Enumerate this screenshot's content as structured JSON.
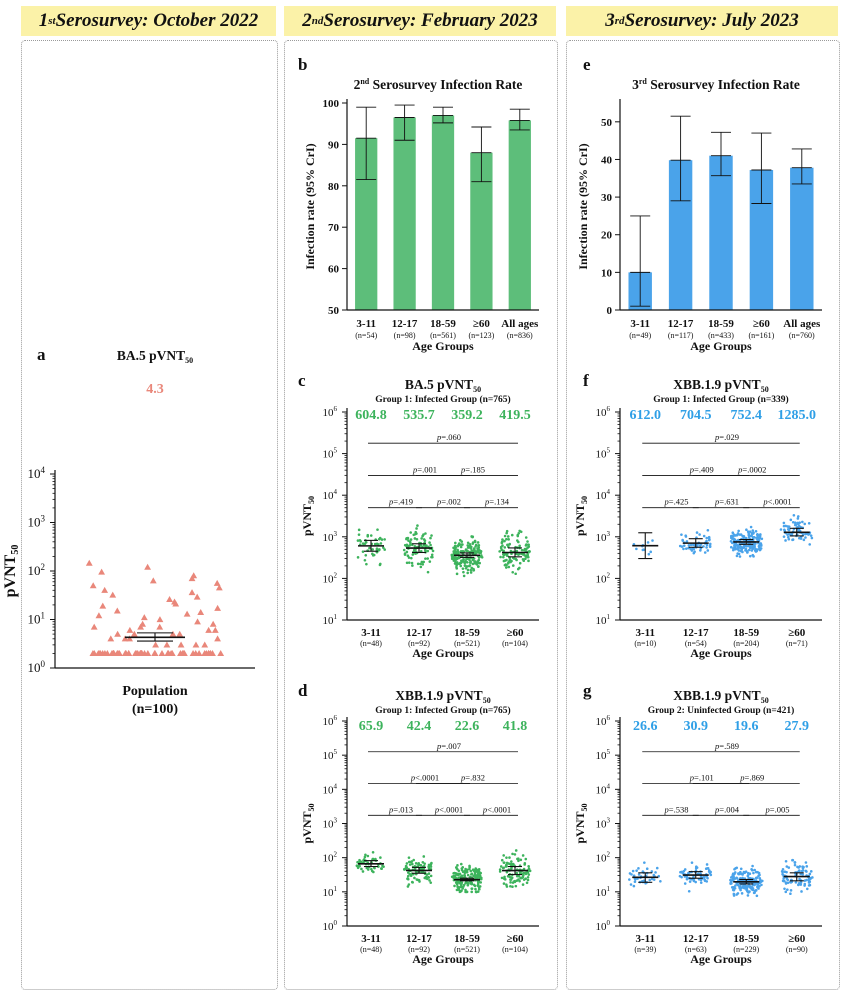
{
  "headers": {
    "col1": {
      "main": "1",
      "sup": "st",
      "rest": " Serosurvey: October 2022"
    },
    "col2": {
      "main": "2",
      "sup": "nd",
      "rest": " Serosurvey: February 2023"
    },
    "col3": {
      "main": "3",
      "sup": "rd",
      "rest": " Serosurvey: July 2023"
    }
  },
  "colors": {
    "header_bg": "#fbf2a8",
    "salmon": "#e9877a",
    "green_bar": "#5dbe7a",
    "green": "#3db35c",
    "blue": "#4aa3ea",
    "blue_text": "#2f9fe6"
  },
  "chart_data": [
    {
      "panel": "a",
      "type": "scatter",
      "title_main": "BA.5 pVNT",
      "title_sub": "50",
      "ylabel_main": "pVNT",
      "ylabel_sub": "50",
      "yscale": "log10",
      "ylim": [
        1,
        10000
      ],
      "y_ticks": [
        {
          "b": "10",
          "e": "0"
        },
        {
          "b": "10",
          "e": "1"
        },
        {
          "b": "10",
          "e": "2"
        },
        {
          "b": "10",
          "e": "3"
        },
        {
          "b": "10",
          "e": "4"
        }
      ],
      "categories": [
        "Population"
      ],
      "n_labels": [
        "(n=100)"
      ],
      "gmt_labels": [
        "4.3"
      ],
      "gmt": [
        4.3
      ],
      "ci_low": [
        3.6
      ],
      "ci_high": [
        5.3
      ],
      "points": [
        [
          2,
          2,
          2,
          2,
          2,
          2,
          2,
          2,
          2,
          2,
          2,
          2,
          2,
          2,
          2,
          2,
          2,
          2,
          2,
          2,
          2,
          2,
          2,
          2,
          2,
          2,
          2,
          2,
          2,
          2,
          2,
          2,
          2,
          2,
          2,
          2,
          2,
          2,
          2,
          2,
          2,
          2,
          2,
          2,
          2,
          2,
          2,
          2,
          2,
          2,
          2,
          2,
          2,
          2,
          3,
          3,
          3,
          3,
          3,
          4,
          4,
          4,
          4,
          5,
          5,
          5,
          5,
          6,
          6,
          6,
          7,
          7,
          7,
          8,
          8,
          9,
          10,
          11,
          12,
          13,
          14,
          15,
          17,
          19,
          21,
          23,
          26,
          29,
          32,
          36,
          40,
          45,
          50,
          56,
          63,
          70,
          80,
          95,
          120,
          145
        ]
      ]
    },
    {
      "panel": "b",
      "type": "bar",
      "title_pre": "2",
      "title_sup": "nd",
      "title_rest": " Serosurvey Infection Rate",
      "ylabel": "Infection rate (95% CrI)",
      "xlabel": "Age Groups",
      "ylim": [
        50,
        100
      ],
      "y_ticks": [
        50,
        60,
        70,
        80,
        90,
        100
      ],
      "categories": [
        "3-11",
        "12-17",
        "18-59",
        "≥60",
        "All ages"
      ],
      "n_labels": [
        "(n=54)",
        "(n=98)",
        "(n=561)",
        "(n=123)",
        "(n=836)"
      ],
      "values": [
        91.5,
        96.5,
        97.0,
        88.0,
        95.8
      ],
      "ci_low": [
        81.5,
        91.0,
        95.2,
        81.0,
        93.5
      ],
      "ci_high": [
        99.0,
        99.5,
        99.0,
        94.2,
        98.5
      ]
    },
    {
      "panel": "e",
      "type": "bar",
      "title_pre": "3",
      "title_sup": "rd",
      "title_rest": " Serosurvey Infection Rate",
      "ylabel": "Infection rate (95% CrI)",
      "xlabel": "Age Groups",
      "ylim": [
        0,
        55
      ],
      "y_ticks": [
        0,
        10,
        20,
        30,
        40,
        50
      ],
      "categories": [
        "3-11",
        "12-17",
        "18-59",
        "≥60",
        "All ages"
      ],
      "n_labels": [
        "(n=49)",
        "(n=117)",
        "(n=433)",
        "(n=161)",
        "(n=760)"
      ],
      "values": [
        10.0,
        39.8,
        41.0,
        37.2,
        37.8
      ],
      "ci_low": [
        1.0,
        29.0,
        35.7,
        28.3,
        33.5
      ],
      "ci_high": [
        25.0,
        51.5,
        47.2,
        47.0,
        42.8
      ]
    },
    {
      "panel": "c",
      "type": "scatter",
      "title_main": "BA.5 pVNT",
      "title_sub": "50",
      "subtitle": "Group 1: Infected Group (n=765)",
      "ylabel_main": "pVNT",
      "ylabel_sub": "50",
      "xlabel": "Age Groups",
      "yscale": "log10",
      "ylim": [
        10,
        1000000
      ],
      "y_ticks": [
        {
          "b": "10",
          "e": "1"
        },
        {
          "b": "10",
          "e": "2"
        },
        {
          "b": "10",
          "e": "3"
        },
        {
          "b": "10",
          "e": "4"
        },
        {
          "b": "10",
          "e": "5"
        },
        {
          "b": "10",
          "e": "6"
        }
      ],
      "categories": [
        "3-11",
        "12-17",
        "18-59",
        "≥60"
      ],
      "n_labels": [
        "(n=48)",
        "(n=92)",
        "(n=521)",
        "(n=104)"
      ],
      "gmt_labels": [
        "604.8",
        "535.7",
        "359.2",
        "419.5"
      ],
      "gmt": [
        604.8,
        535.7,
        359.2,
        419.5
      ],
      "ci_low": [
        450,
        420,
        320,
        330
      ],
      "ci_high": [
        820,
        680,
        410,
        540
      ],
      "spread": [
        2.6,
        2.8,
        2.7,
        2.9
      ],
      "max": [
        4000,
        4000,
        4000,
        4000
      ],
      "min": [
        40,
        30,
        25,
        40
      ],
      "comparisons": [
        {
          "from": 0,
          "to": 1,
          "p": "=.419"
        },
        {
          "from": 1,
          "to": 2,
          "p": "=.002"
        },
        {
          "from": 2,
          "to": 3,
          "p": "=.134"
        },
        {
          "from": 0,
          "to": 2,
          "p": "=.001"
        },
        {
          "from": 1,
          "to": 3,
          "p": "=.185"
        },
        {
          "from": 0,
          "to": 3,
          "p": "=.060"
        }
      ]
    },
    {
      "panel": "d",
      "type": "scatter",
      "title_main": "XBB.1.9 pVNT",
      "title_sub": "50",
      "subtitle": "Group 1: Infected Group (n=765)",
      "ylabel_main": "pVNT",
      "ylabel_sub": "50",
      "xlabel": "Age Groups",
      "yscale": "log10",
      "ylim": [
        1,
        1000000
      ],
      "y_ticks": [
        {
          "b": "10",
          "e": "0"
        },
        {
          "b": "10",
          "e": "1"
        },
        {
          "b": "10",
          "e": "2"
        },
        {
          "b": "10",
          "e": "3"
        },
        {
          "b": "10",
          "e": "4"
        },
        {
          "b": "10",
          "e": "5"
        },
        {
          "b": "10",
          "e": "6"
        }
      ],
      "categories": [
        "3-11",
        "12-17",
        "18-59",
        "≥60"
      ],
      "n_labels": [
        "(n=48)",
        "(n=92)",
        "(n=521)",
        "(n=104)"
      ],
      "gmt_labels": [
        "65.9",
        "42.4",
        "22.6",
        "41.8"
      ],
      "gmt": [
        65.9,
        42.4,
        22.6,
        41.8
      ],
      "ci_low": [
        55,
        35,
        21,
        32
      ],
      "ci_high": [
        82,
        52,
        25,
        55
      ],
      "spread": [
        2.0,
        2.6,
        2.7,
        3.2
      ],
      "max": [
        800,
        800,
        3000,
        5000
      ],
      "min": [
        15,
        2,
        10,
        2
      ],
      "comparisons": [
        {
          "from": 0,
          "to": 1,
          "p": "=.013"
        },
        {
          "from": 1,
          "to": 2,
          "p": "<.0001"
        },
        {
          "from": 2,
          "to": 3,
          "p": "<.0001"
        },
        {
          "from": 0,
          "to": 2,
          "p": "<.0001"
        },
        {
          "from": 1,
          "to": 3,
          "p": "=.832"
        },
        {
          "from": 0,
          "to": 3,
          "p": "=.007"
        }
      ]
    },
    {
      "panel": "f",
      "type": "scatter",
      "title_main": "XBB.1.9 pVNT",
      "title_sub": "50",
      "subtitle": "Group 1: Infected Group (n=339)",
      "ylabel_main": "pVNT",
      "ylabel_sub": "50",
      "xlabel": "Age Groups",
      "yscale": "log10",
      "ylim": [
        10,
        1000000
      ],
      "y_ticks": [
        {
          "b": "10",
          "e": "1"
        },
        {
          "b": "10",
          "e": "2"
        },
        {
          "b": "10",
          "e": "3"
        },
        {
          "b": "10",
          "e": "4"
        },
        {
          "b": "10",
          "e": "5"
        },
        {
          "b": "10",
          "e": "6"
        }
      ],
      "categories": [
        "3-11",
        "12-17",
        "18-59",
        "≥60"
      ],
      "n_labels": [
        "(n=10)",
        "(n=54)",
        "(n=204)",
        "(n=71)"
      ],
      "gmt_labels": [
        "612.0",
        "704.5",
        "752.4",
        "1285.0"
      ],
      "gmt": [
        612.0,
        704.5,
        752.4,
        1285.0
      ],
      "ci_low": [
        300,
        560,
        660,
        1050
      ],
      "ci_high": [
        1250,
        900,
        860,
        1600
      ],
      "spread": [
        2.3,
        2.0,
        2.1,
        2.1
      ],
      "max": [
        4000,
        4000,
        4000,
        4000
      ],
      "min": [
        200,
        200,
        150,
        250
      ],
      "comparisons": [
        {
          "from": 0,
          "to": 1,
          "p": "=.425"
        },
        {
          "from": 1,
          "to": 2,
          "p": "=.631"
        },
        {
          "from": 2,
          "to": 3,
          "p": "<.0001"
        },
        {
          "from": 0,
          "to": 2,
          "p": "=.409"
        },
        {
          "from": 1,
          "to": 3,
          "p": "=.0002"
        },
        {
          "from": 0,
          "to": 3,
          "p": "=.029"
        }
      ]
    },
    {
      "panel": "g",
      "type": "scatter",
      "title_main": "XBB.1.9 pVNT",
      "title_sub": "50",
      "subtitle": "Group 2: Uninfected Group (n=421)",
      "ylabel_main": "pVNT",
      "ylabel_sub": "50",
      "xlabel": "Age Groups",
      "yscale": "log10",
      "ylim": [
        1,
        1000000
      ],
      "y_ticks": [
        {
          "b": "10",
          "e": "0"
        },
        {
          "b": "10",
          "e": "1"
        },
        {
          "b": "10",
          "e": "2"
        },
        {
          "b": "10",
          "e": "3"
        },
        {
          "b": "10",
          "e": "4"
        },
        {
          "b": "10",
          "e": "5"
        },
        {
          "b": "10",
          "e": "6"
        }
      ],
      "categories": [
        "3-11",
        "12-17",
        "18-59",
        "≥60"
      ],
      "n_labels": [
        "(n=39)",
        "(n=63)",
        "(n=229)",
        "(n=90)"
      ],
      "gmt_labels": [
        "26.6",
        "30.9",
        "19.6",
        "27.9"
      ],
      "gmt": [
        26.6,
        30.9,
        19.6,
        27.9
      ],
      "ci_low": [
        19,
        25,
        17,
        21
      ],
      "ci_high": [
        36,
        39,
        23,
        36
      ],
      "spread": [
        2.4,
        2.4,
        2.6,
        2.9
      ],
      "max": [
        180,
        180,
        180,
        180
      ],
      "min": [
        2,
        2,
        2,
        2
      ],
      "comparisons": [
        {
          "from": 0,
          "to": 1,
          "p": "=.538"
        },
        {
          "from": 1,
          "to": 2,
          "p": "=.004"
        },
        {
          "from": 2,
          "to": 3,
          "p": "=.005"
        },
        {
          "from": 0,
          "to": 2,
          "p": "=.101"
        },
        {
          "from": 1,
          "to": 3,
          "p": "=.869"
        },
        {
          "from": 0,
          "to": 3,
          "p": "=.589"
        }
      ]
    }
  ]
}
